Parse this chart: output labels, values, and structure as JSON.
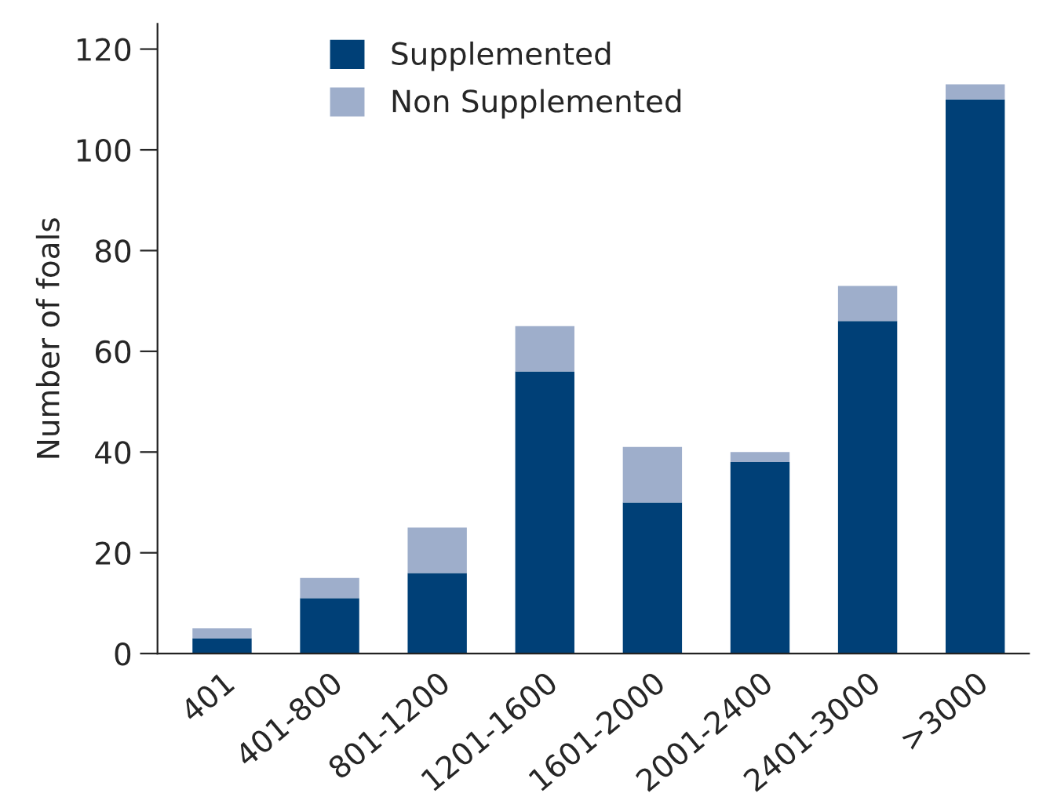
{
  "chart_data": {
    "type": "bar",
    "stacked": true,
    "ylabel": "Number of foals",
    "categories": [
      "401",
      "401-800",
      "801-1200",
      "1201-1600",
      "1601-2000",
      "2001-2400",
      "2401-3000",
      ">3000"
    ],
    "series": [
      {
        "name": "Supplemented",
        "color": "#004077",
        "values": [
          3,
          11,
          16,
          56,
          30,
          38,
          66,
          110
        ]
      },
      {
        "name": "Non Supplemented",
        "color": "#9eaecb",
        "values": [
          2,
          4,
          9,
          9,
          11,
          2,
          7,
          3
        ]
      }
    ],
    "ylim": [
      0,
      125
    ],
    "yticks": [
      0,
      20,
      40,
      60,
      80,
      100,
      120
    ],
    "grid": false,
    "legend": "top"
  }
}
